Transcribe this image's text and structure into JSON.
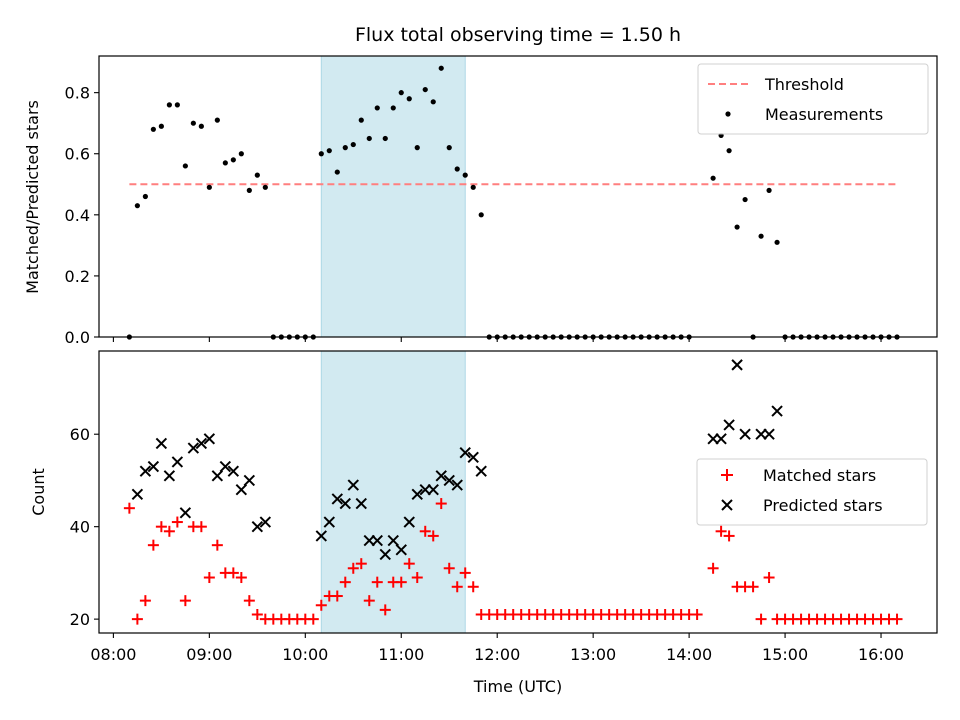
{
  "chart_data": [
    {
      "type": "scatter",
      "title": "Flux total observing time = 1.50 h",
      "xlabel": "",
      "ylabel": "Matched/Predicted stars",
      "xlim": [
        "07:51",
        "16:35"
      ],
      "ylim": [
        0,
        0.92
      ],
      "yticks": [
        0.0,
        0.2,
        0.4,
        0.6,
        0.8
      ],
      "ytick_labels": [
        "0.0",
        "0.2",
        "0.4",
        "0.6",
        "0.8"
      ],
      "shaded_span": [
        "10:10",
        "11:40"
      ],
      "shaded_color": "#add8e6",
      "threshold": {
        "name": "Threshold",
        "y": 0.5,
        "x": [
          "08:10",
          "16:10"
        ],
        "color": "#ff7f7f",
        "style": "dashed"
      },
      "legend": {
        "location": "upper right",
        "entries": [
          "Threshold",
          "Measurements"
        ]
      },
      "series": [
        {
          "name": "Measurements",
          "color": "#000000",
          "points": [
            [
              "08:10",
              0.0
            ],
            [
              "08:15",
              0.43
            ],
            [
              "08:20",
              0.46
            ],
            [
              "08:25",
              0.68
            ],
            [
              "08:30",
              0.69
            ],
            [
              "08:35",
              0.76
            ],
            [
              "08:40",
              0.76
            ],
            [
              "08:45",
              0.56
            ],
            [
              "08:50",
              0.7
            ],
            [
              "08:55",
              0.69
            ],
            [
              "09:00",
              0.49
            ],
            [
              "09:05",
              0.71
            ],
            [
              "09:10",
              0.57
            ],
            [
              "09:15",
              0.58
            ],
            [
              "09:20",
              0.6
            ],
            [
              "09:25",
              0.48
            ],
            [
              "09:30",
              0.53
            ],
            [
              "09:35",
              0.49
            ],
            [
              "09:40",
              0.0
            ],
            [
              "09:45",
              0.0
            ],
            [
              "09:50",
              0.0
            ],
            [
              "09:55",
              0.0
            ],
            [
              "10:00",
              0.0
            ],
            [
              "10:05",
              0.0
            ],
            [
              "10:10",
              0.6
            ],
            [
              "10:15",
              0.61
            ],
            [
              "10:20",
              0.54
            ],
            [
              "10:25",
              0.62
            ],
            [
              "10:30",
              0.63
            ],
            [
              "10:35",
              0.71
            ],
            [
              "10:40",
              0.65
            ],
            [
              "10:45",
              0.75
            ],
            [
              "10:50",
              0.65
            ],
            [
              "10:55",
              0.75
            ],
            [
              "11:00",
              0.8
            ],
            [
              "11:05",
              0.78
            ],
            [
              "11:10",
              0.62
            ],
            [
              "11:15",
              0.81
            ],
            [
              "11:20",
              0.77
            ],
            [
              "11:25",
              0.88
            ],
            [
              "11:30",
              0.62
            ],
            [
              "11:35",
              0.55
            ],
            [
              "11:40",
              0.53
            ],
            [
              "11:45",
              0.49
            ],
            [
              "11:50",
              0.4
            ],
            [
              "11:55",
              0.0
            ],
            [
              "12:00",
              0.0
            ],
            [
              "12:05",
              0.0
            ],
            [
              "12:10",
              0.0
            ],
            [
              "12:15",
              0.0
            ],
            [
              "12:20",
              0.0
            ],
            [
              "12:25",
              0.0
            ],
            [
              "12:30",
              0.0
            ],
            [
              "12:35",
              0.0
            ],
            [
              "12:40",
              0.0
            ],
            [
              "12:45",
              0.0
            ],
            [
              "12:50",
              0.0
            ],
            [
              "12:55",
              0.0
            ],
            [
              "13:00",
              0.0
            ],
            [
              "13:05",
              0.0
            ],
            [
              "13:10",
              0.0
            ],
            [
              "13:15",
              0.0
            ],
            [
              "13:20",
              0.0
            ],
            [
              "13:25",
              0.0
            ],
            [
              "13:30",
              0.0
            ],
            [
              "13:35",
              0.0
            ],
            [
              "13:40",
              0.0
            ],
            [
              "13:45",
              0.0
            ],
            [
              "13:50",
              0.0
            ],
            [
              "13:55",
              0.0
            ],
            [
              "14:00",
              0.0
            ],
            [
              "14:15",
              0.52
            ],
            [
              "14:20",
              0.66
            ],
            [
              "14:25",
              0.61
            ],
            [
              "14:30",
              0.36
            ],
            [
              "14:35",
              0.45
            ],
            [
              "14:40",
              0.0
            ],
            [
              "14:45",
              0.33
            ],
            [
              "14:50",
              0.48
            ],
            [
              "14:55",
              0.31
            ],
            [
              "15:00",
              0.0
            ],
            [
              "15:05",
              0.0
            ],
            [
              "15:10",
              0.0
            ],
            [
              "15:15",
              0.0
            ],
            [
              "15:20",
              0.0
            ],
            [
              "15:25",
              0.0
            ],
            [
              "15:30",
              0.0
            ],
            [
              "15:35",
              0.0
            ],
            [
              "15:40",
              0.0
            ],
            [
              "15:45",
              0.0
            ],
            [
              "15:50",
              0.0
            ],
            [
              "15:55",
              0.0
            ],
            [
              "16:00",
              0.0
            ],
            [
              "16:05",
              0.0
            ],
            [
              "16:10",
              0.0
            ]
          ]
        }
      ]
    },
    {
      "type": "scatter",
      "title": "",
      "xlabel": "Time (UTC)",
      "ylabel": "Count",
      "xlim": [
        "07:51",
        "16:35"
      ],
      "ylim": [
        17,
        78
      ],
      "xticks": [
        "08:00",
        "09:00",
        "10:00",
        "11:00",
        "12:00",
        "13:00",
        "14:00",
        "15:00",
        "16:00"
      ],
      "yticks": [
        20,
        40,
        60
      ],
      "ytick_labels": [
        "20",
        "40",
        "60"
      ],
      "shaded_span": [
        "10:10",
        "11:40"
      ],
      "shaded_color": "#add8e6",
      "legend": {
        "location": "center right",
        "entries": [
          "Matched stars",
          "Predicted stars"
        ]
      },
      "series": [
        {
          "name": "Matched stars",
          "color": "#ff0000",
          "marker": "+",
          "points": [
            [
              "08:10",
              44
            ],
            [
              "08:15",
              20
            ],
            [
              "08:20",
              24
            ],
            [
              "08:25",
              36
            ],
            [
              "08:30",
              40
            ],
            [
              "08:35",
              39
            ],
            [
              "08:40",
              41
            ],
            [
              "08:45",
              24
            ],
            [
              "08:50",
              40
            ],
            [
              "08:55",
              40
            ],
            [
              "09:00",
              29
            ],
            [
              "09:05",
              36
            ],
            [
              "09:10",
              30
            ],
            [
              "09:15",
              30
            ],
            [
              "09:20",
              29
            ],
            [
              "09:25",
              24
            ],
            [
              "09:30",
              21
            ],
            [
              "09:35",
              20
            ],
            [
              "09:40",
              20
            ],
            [
              "09:45",
              20
            ],
            [
              "09:50",
              20
            ],
            [
              "09:55",
              20
            ],
            [
              "10:00",
              20
            ],
            [
              "10:05",
              20
            ],
            [
              "10:10",
              23
            ],
            [
              "10:15",
              25
            ],
            [
              "10:20",
              25
            ],
            [
              "10:25",
              28
            ],
            [
              "10:30",
              31
            ],
            [
              "10:35",
              32
            ],
            [
              "10:40",
              24
            ],
            [
              "10:45",
              28
            ],
            [
              "10:50",
              22
            ],
            [
              "10:55",
              28
            ],
            [
              "11:00",
              28
            ],
            [
              "11:05",
              32
            ],
            [
              "11:10",
              29
            ],
            [
              "11:15",
              39
            ],
            [
              "11:20",
              38
            ],
            [
              "11:25",
              45
            ],
            [
              "11:30",
              31
            ],
            [
              "11:35",
              27
            ],
            [
              "11:40",
              30
            ],
            [
              "11:45",
              27
            ],
            [
              "11:50",
              21
            ],
            [
              "11:55",
              21
            ],
            [
              "12:00",
              21
            ],
            [
              "12:05",
              21
            ],
            [
              "12:10",
              21
            ],
            [
              "12:15",
              21
            ],
            [
              "12:20",
              21
            ],
            [
              "12:25",
              21
            ],
            [
              "12:30",
              21
            ],
            [
              "12:35",
              21
            ],
            [
              "12:40",
              21
            ],
            [
              "12:45",
              21
            ],
            [
              "12:50",
              21
            ],
            [
              "12:55",
              21
            ],
            [
              "13:00",
              21
            ],
            [
              "13:05",
              21
            ],
            [
              "13:10",
              21
            ],
            [
              "13:15",
              21
            ],
            [
              "13:20",
              21
            ],
            [
              "13:25",
              21
            ],
            [
              "13:30",
              21
            ],
            [
              "13:35",
              21
            ],
            [
              "13:40",
              21
            ],
            [
              "13:45",
              21
            ],
            [
              "13:50",
              21
            ],
            [
              "13:55",
              21
            ],
            [
              "14:00",
              21
            ],
            [
              "14:05",
              21
            ],
            [
              "14:15",
              31
            ],
            [
              "14:20",
              39
            ],
            [
              "14:25",
              38
            ],
            [
              "14:30",
              27
            ],
            [
              "14:35",
              27
            ],
            [
              "14:40",
              27
            ],
            [
              "14:45",
              20
            ],
            [
              "14:50",
              29
            ],
            [
              "14:55",
              20
            ],
            [
              "15:00",
              20
            ],
            [
              "15:05",
              20
            ],
            [
              "15:10",
              20
            ],
            [
              "15:15",
              20
            ],
            [
              "15:20",
              20
            ],
            [
              "15:25",
              20
            ],
            [
              "15:30",
              20
            ],
            [
              "15:35",
              20
            ],
            [
              "15:40",
              20
            ],
            [
              "15:45",
              20
            ],
            [
              "15:50",
              20
            ],
            [
              "15:55",
              20
            ],
            [
              "16:00",
              20
            ],
            [
              "16:05",
              20
            ],
            [
              "16:10",
              20
            ]
          ]
        },
        {
          "name": "Predicted stars",
          "color": "#000000",
          "marker": "x",
          "points": [
            [
              "08:15",
              47
            ],
            [
              "08:20",
              52
            ],
            [
              "08:25",
              53
            ],
            [
              "08:30",
              58
            ],
            [
              "08:35",
              51
            ],
            [
              "08:40",
              54
            ],
            [
              "08:45",
              43
            ],
            [
              "08:50",
              57
            ],
            [
              "08:55",
              58
            ],
            [
              "09:00",
              59
            ],
            [
              "09:05",
              51
            ],
            [
              "09:10",
              53
            ],
            [
              "09:15",
              52
            ],
            [
              "09:20",
              48
            ],
            [
              "09:25",
              50
            ],
            [
              "09:30",
              40
            ],
            [
              "09:35",
              41
            ],
            [
              "10:10",
              38
            ],
            [
              "10:15",
              41
            ],
            [
              "10:20",
              46
            ],
            [
              "10:25",
              45
            ],
            [
              "10:30",
              49
            ],
            [
              "10:35",
              45
            ],
            [
              "10:40",
              37
            ],
            [
              "10:45",
              37
            ],
            [
              "10:50",
              34
            ],
            [
              "10:55",
              37
            ],
            [
              "11:00",
              35
            ],
            [
              "11:05",
              41
            ],
            [
              "11:10",
              47
            ],
            [
              "11:15",
              48
            ],
            [
              "11:20",
              48
            ],
            [
              "11:25",
              51
            ],
            [
              "11:30",
              50
            ],
            [
              "11:35",
              49
            ],
            [
              "11:40",
              56
            ],
            [
              "11:45",
              55
            ],
            [
              "11:50",
              52
            ],
            [
              "14:15",
              59
            ],
            [
              "14:20",
              59
            ],
            [
              "14:25",
              62
            ],
            [
              "14:30",
              75
            ],
            [
              "14:35",
              60
            ],
            [
              "14:45",
              60
            ],
            [
              "14:50",
              60
            ],
            [
              "14:55",
              65
            ]
          ]
        }
      ]
    }
  ]
}
